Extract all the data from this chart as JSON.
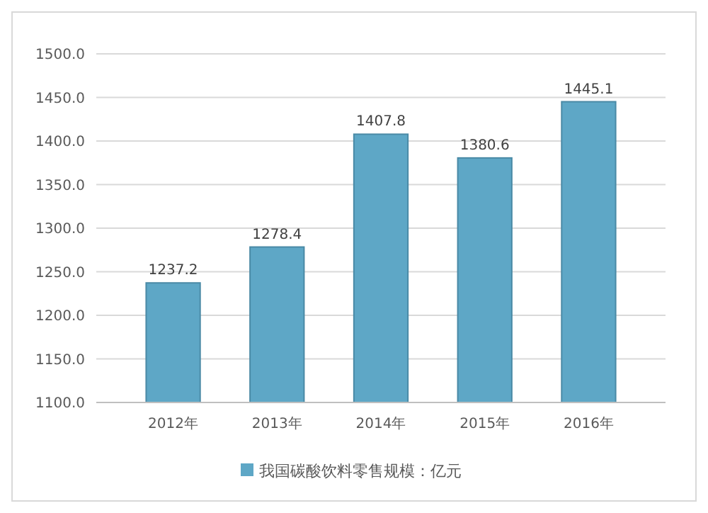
{
  "chart_data": {
    "type": "bar",
    "categories": [
      "2012年",
      "2013年",
      "2014年",
      "2015年",
      "2016年"
    ],
    "series": [
      {
        "name": "我国碳酸饮料零售规模：亿元",
        "color": "#5ea7c6",
        "values": [
          1237.2,
          1278.4,
          1407.8,
          1380.6,
          1445.1
        ]
      }
    ],
    "ylim": [
      1100,
      1500
    ],
    "yticks": [
      {
        "value": 1100,
        "label": "1100.0"
      },
      {
        "value": 1150,
        "label": "1150.0"
      },
      {
        "value": 1200,
        "label": "1200.0"
      },
      {
        "value": 1250,
        "label": "1250.0"
      },
      {
        "value": 1300,
        "label": "1300.0"
      },
      {
        "value": 1350,
        "label": "1350.0"
      },
      {
        "value": 1400,
        "label": "1400.0"
      },
      {
        "value": 1450,
        "label": "1450.0"
      },
      {
        "value": 1500,
        "label": "1500.0"
      }
    ],
    "grid": "y",
    "data_labels": true,
    "legend": "bottom"
  }
}
